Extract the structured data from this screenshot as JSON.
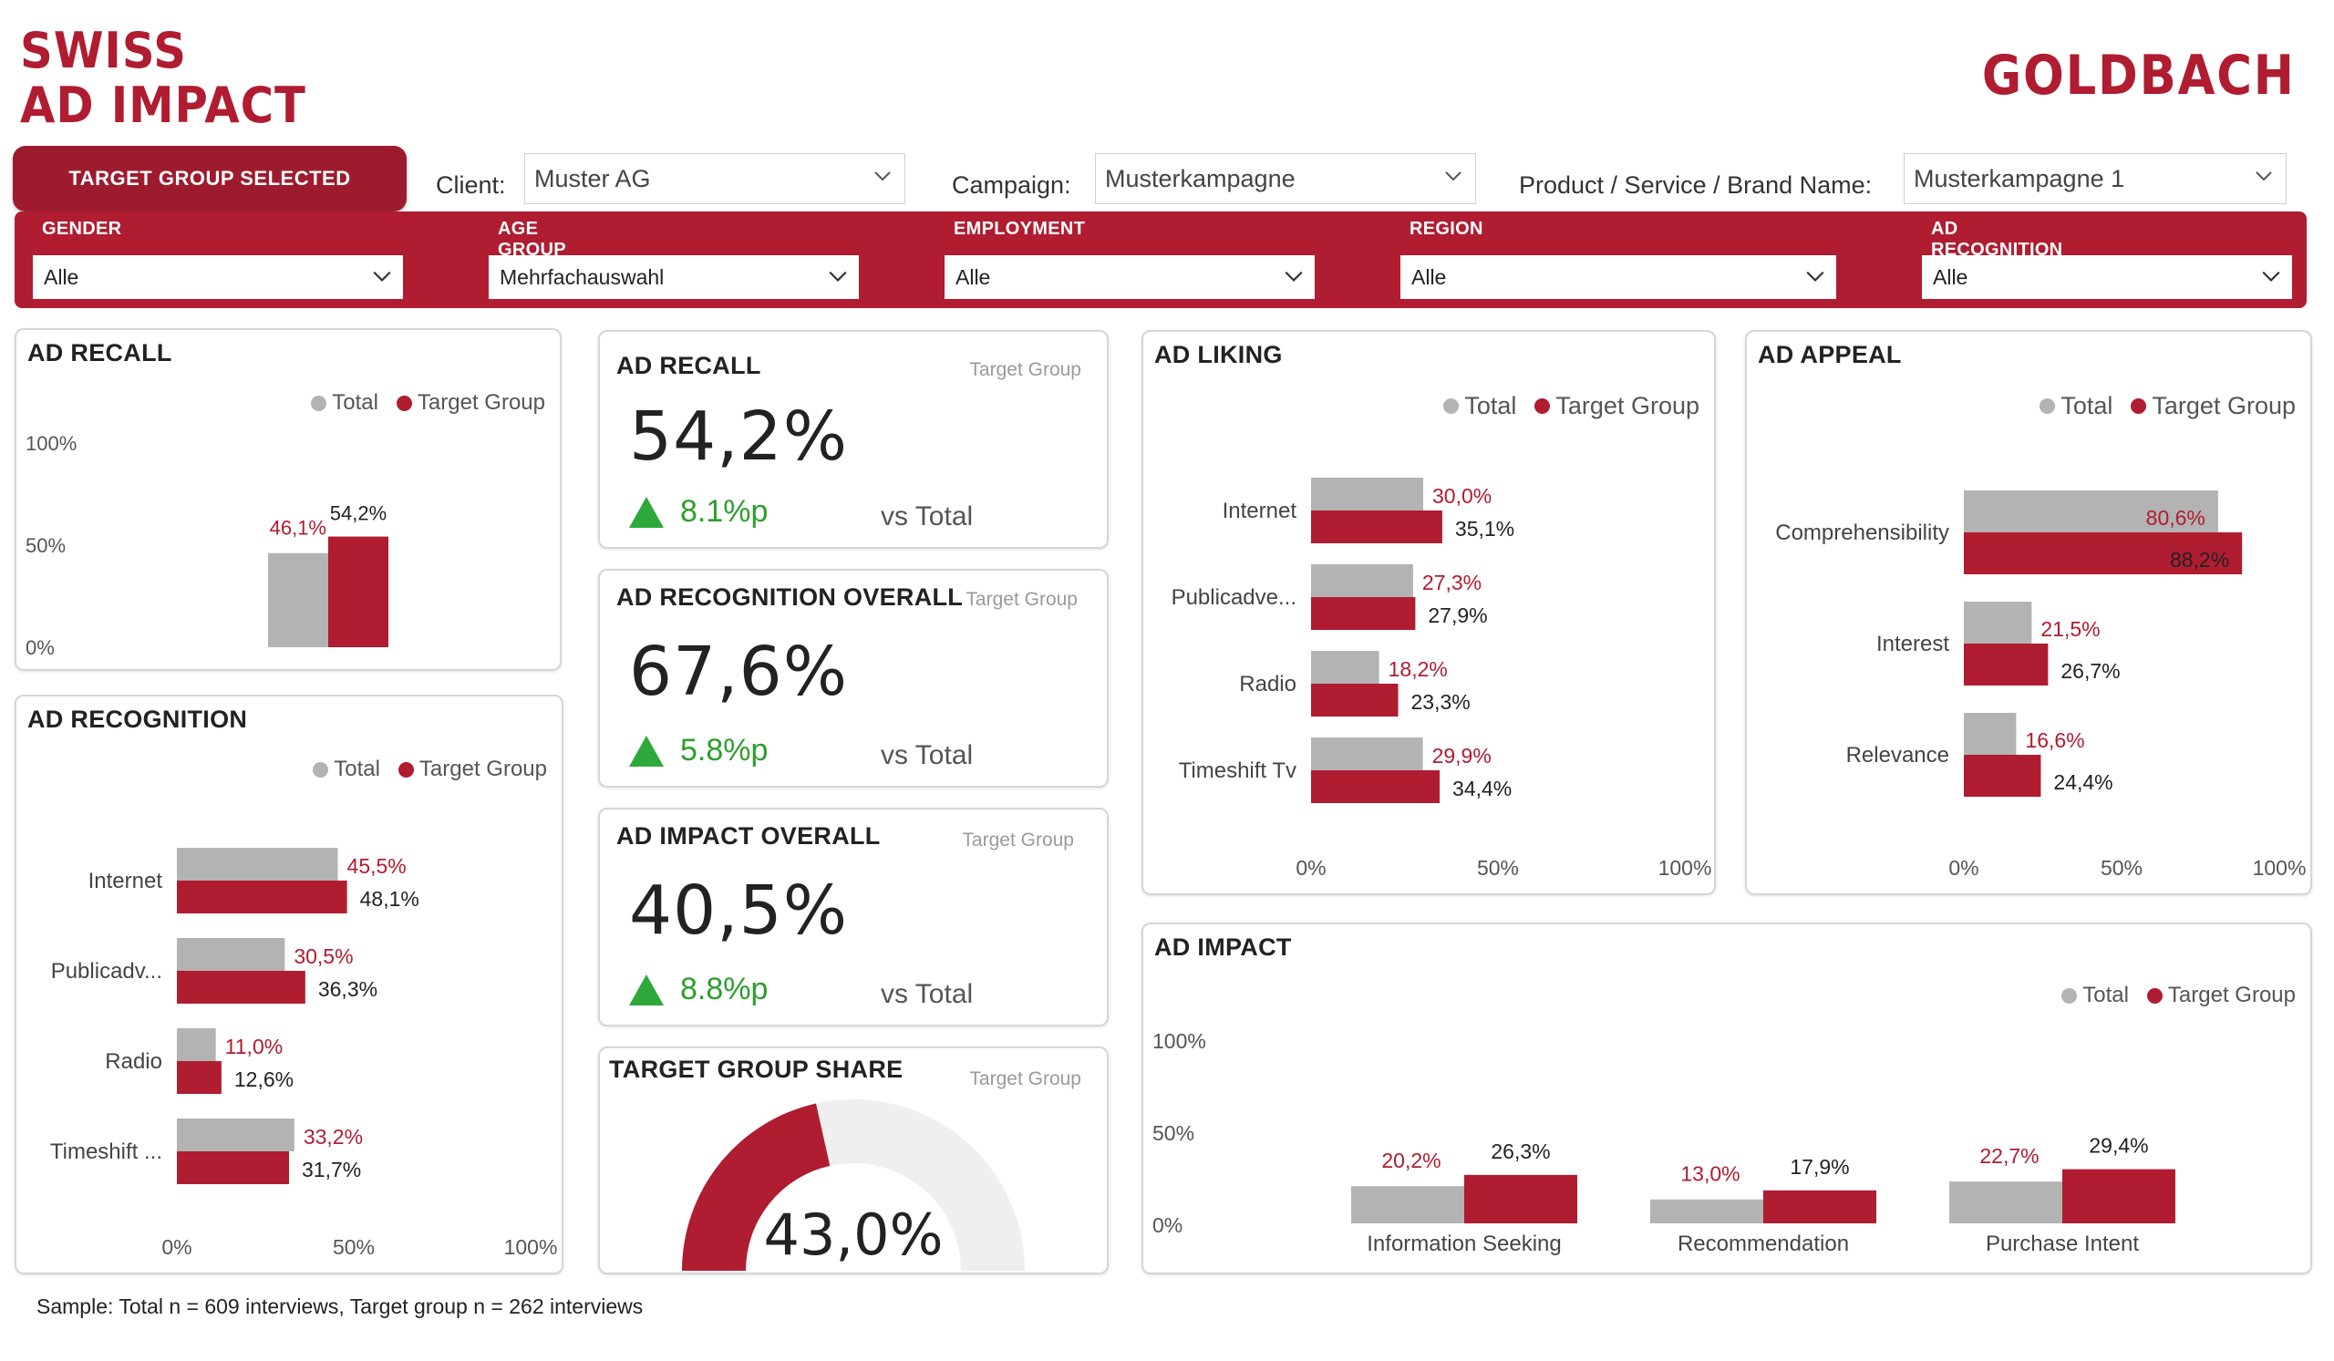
{
  "header": {
    "logo_line1": "SWISS",
    "logo_line2": "AD IMPACT",
    "brand": "GOLDBACH",
    "target_group_button": "TARGET GROUP SELECTED"
  },
  "selectors": {
    "client_label": "Client:",
    "client_value": "Muster AG",
    "campaign_label": "Campaign:",
    "campaign_value": "Musterkampagne",
    "product_label": "Product / Service / Brand Name:",
    "product_value": "Musterkampagne 1"
  },
  "filters": [
    {
      "label": "GENDER",
      "value": "Alle"
    },
    {
      "label": "AGE GROUP",
      "value": "Mehrfachauswahl"
    },
    {
      "label": "EMPLOYMENT",
      "value": "Alle"
    },
    {
      "label": "REGION",
      "value": "Alle"
    },
    {
      "label": "AD RECOGNITION",
      "value": "Alle"
    }
  ],
  "legend": {
    "total": "Total",
    "target": "Target Group"
  },
  "colors": {
    "accent": "#b01c30",
    "total": "#b3b3b3",
    "positive": "#2ea83a"
  },
  "ad_recall_chart": {
    "title": "AD RECALL",
    "y_ticks": [
      "100%",
      "50%",
      "0%"
    ],
    "total_label": "46,1%",
    "target_label": "54,2%"
  },
  "kpis": [
    {
      "title": "AD RECALL",
      "sub": "Target Group",
      "value": "54,2%",
      "delta": "8.1%p",
      "vs": "vs Total"
    },
    {
      "title": "AD RECOGNITION OVERALL",
      "sub": "Target Group",
      "value": "67,6%",
      "delta": "5.8%p",
      "vs": "vs Total"
    },
    {
      "title": "AD IMPACT OVERALL",
      "sub": "Target Group",
      "value": "40,5%",
      "delta": "8.8%p",
      "vs": "vs Total"
    }
  ],
  "target_group_share": {
    "title": "TARGET GROUP SHARE",
    "sub": "Target Group",
    "value": "43,0%"
  },
  "ad_recognition": {
    "title": "AD RECOGNITION",
    "x_ticks": [
      "0%",
      "50%",
      "100%"
    ],
    "rows": [
      {
        "label": "Internet",
        "total_label": "45,5%",
        "target_label": "48,1%"
      },
      {
        "label": "Publicadv...",
        "total_label": "30,5%",
        "target_label": "36,3%"
      },
      {
        "label": "Radio",
        "total_label": "11,0%",
        "target_label": "12,6%"
      },
      {
        "label": "Timeshift ...",
        "total_label": "33,2%",
        "target_label": "31,7%"
      }
    ]
  },
  "ad_liking": {
    "title": "AD LIKING",
    "x_ticks": [
      "0%",
      "50%",
      "100%"
    ],
    "rows": [
      {
        "label": "Internet",
        "total_label": "30,0%",
        "target_label": "35,1%"
      },
      {
        "label": "Publicadve...",
        "total_label": "27,3%",
        "target_label": "27,9%"
      },
      {
        "label": "Radio",
        "total_label": "18,2%",
        "target_label": "23,3%"
      },
      {
        "label": "Timeshift Tv",
        "total_label": "29,9%",
        "target_label": "34,4%"
      }
    ]
  },
  "ad_appeal": {
    "title": "AD APPEAL",
    "x_ticks": [
      "0%",
      "50%",
      "100%"
    ],
    "rows": [
      {
        "label": "Comprehensibility",
        "total_label": "80,6%",
        "target_label": "88,2%"
      },
      {
        "label": "Interest",
        "total_label": "21,5%",
        "target_label": "26,7%"
      },
      {
        "label": "Relevance",
        "total_label": "16,6%",
        "target_label": "24,4%"
      }
    ]
  },
  "ad_impact": {
    "title": "AD IMPACT",
    "y_ticks": [
      "100%",
      "50%",
      "0%"
    ],
    "groups": [
      {
        "label": "Information Seeking",
        "total_label": "20,2%",
        "target_label": "26,3%"
      },
      {
        "label": "Recommendation",
        "total_label": "13,0%",
        "target_label": "17,9%"
      },
      {
        "label": "Purchase Intent",
        "total_label": "22,7%",
        "target_label": "29,4%"
      }
    ]
  },
  "chart_data": [
    {
      "type": "bar",
      "title": "AD RECALL",
      "categories": [
        "AD RECALL"
      ],
      "series": [
        {
          "name": "Total",
          "values": [
            46.1
          ]
        },
        {
          "name": "Target Group",
          "values": [
            54.2
          ]
        }
      ],
      "ylim": [
        0,
        100
      ]
    },
    {
      "type": "bar",
      "orientation": "horizontal",
      "title": "AD RECOGNITION",
      "categories": [
        "Internet",
        "Publicadv...",
        "Radio",
        "Timeshift ..."
      ],
      "series": [
        {
          "name": "Total",
          "values": [
            45.5,
            30.5,
            11.0,
            33.2
          ]
        },
        {
          "name": "Target Group",
          "values": [
            48.1,
            36.3,
            12.6,
            31.7
          ]
        }
      ],
      "xlim": [
        0,
        100
      ]
    },
    {
      "type": "bar",
      "orientation": "horizontal",
      "title": "AD LIKING",
      "categories": [
        "Internet",
        "Publicadve...",
        "Radio",
        "Timeshift Tv"
      ],
      "series": [
        {
          "name": "Total",
          "values": [
            30.0,
            27.3,
            18.2,
            29.9
          ]
        },
        {
          "name": "Target Group",
          "values": [
            35.1,
            27.9,
            23.3,
            34.4
          ]
        }
      ],
      "xlim": [
        0,
        100
      ]
    },
    {
      "type": "bar",
      "orientation": "horizontal",
      "title": "AD APPEAL",
      "categories": [
        "Comprehensibility",
        "Interest",
        "Relevance"
      ],
      "series": [
        {
          "name": "Total",
          "values": [
            80.6,
            21.5,
            16.6
          ]
        },
        {
          "name": "Target Group",
          "values": [
            88.2,
            26.7,
            24.4
          ]
        }
      ],
      "xlim": [
        0,
        100
      ]
    },
    {
      "type": "bar",
      "title": "AD IMPACT",
      "categories": [
        "Information Seeking",
        "Recommendation",
        "Purchase Intent"
      ],
      "series": [
        {
          "name": "Total",
          "values": [
            20.2,
            13.0,
            22.7
          ]
        },
        {
          "name": "Target Group",
          "values": [
            26.3,
            17.9,
            29.4
          ]
        }
      ],
      "ylim": [
        0,
        100
      ]
    },
    {
      "type": "pie",
      "title": "TARGET GROUP SHARE",
      "categories": [
        "Target Group"
      ],
      "values": [
        43.0
      ],
      "range": [
        0,
        100
      ]
    }
  ],
  "footnote": "Sample: Total n = 609 interviews, Target group n = 262 interviews"
}
